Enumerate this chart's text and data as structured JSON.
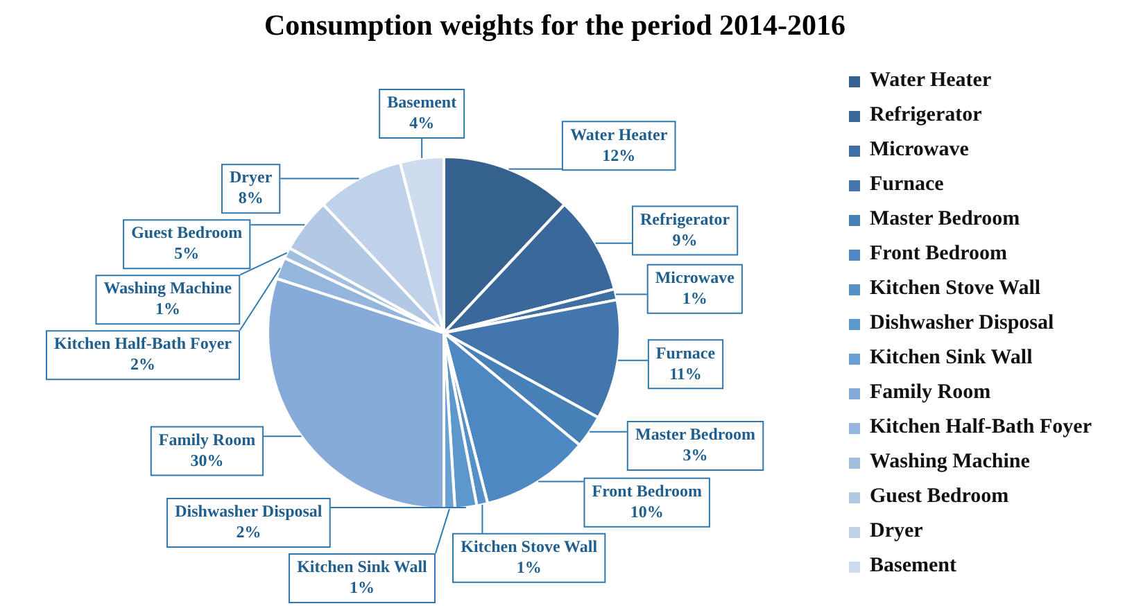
{
  "chart_data": {
    "type": "pie",
    "title": "Consumption weights for the period 2014-2016",
    "categories": [
      "Water Heater",
      "Refrigerator",
      "Microwave",
      "Furnace",
      "Master Bedroom",
      "Front Bedroom",
      "Kitchen Stove Wall",
      "Dishwasher Disposal",
      "Kitchen Sink Wall",
      "Family Room",
      "Kitchen Half-Bath Foyer",
      "Washing Machine",
      "Guest Bedroom",
      "Dryer",
      "Basement"
    ],
    "values": [
      12,
      9,
      1,
      11,
      3,
      10,
      1,
      2,
      1,
      30,
      2,
      1,
      5,
      8,
      4
    ],
    "value_labels": [
      "12%",
      "9%",
      "1%",
      "11%",
      "3%",
      "10%",
      "1%",
      "2%",
      "1%",
      "30%",
      "2%",
      "1%",
      "5%",
      "8%",
      "4%"
    ],
    "colors": [
      "#35618f",
      "#3b689a",
      "#3f6ea2",
      "#4376ad",
      "#4880b8",
      "#4d88c2",
      "#5590c8",
      "#5d98cc",
      "#6aa0d2",
      "#86abd8",
      "#94b5dc",
      "#a3bfe0",
      "#b2c9e5",
      "#c0d2ea",
      "#cfdcef"
    ],
    "legend": "right"
  }
}
